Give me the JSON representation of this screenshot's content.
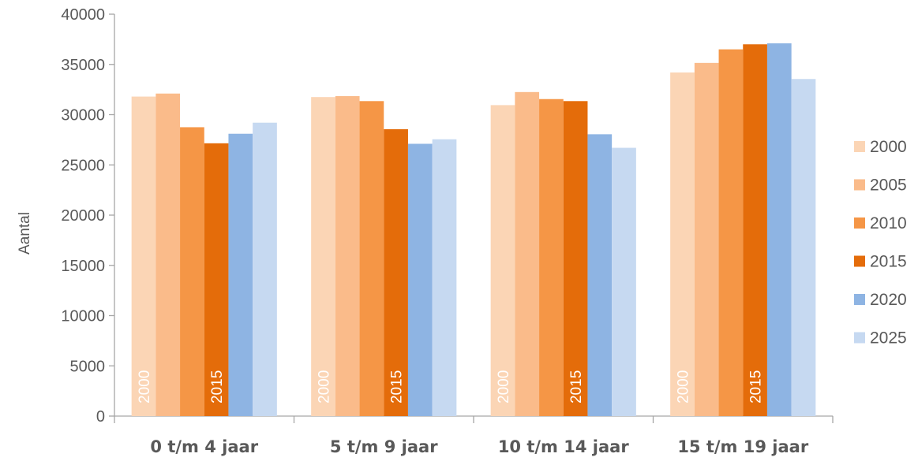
{
  "chart_data": {
    "type": "bar",
    "title": "",
    "xlabel": "",
    "ylabel": "Aantal",
    "ylim": [
      0,
      40000
    ],
    "yticks": [
      0,
      5000,
      10000,
      15000,
      20000,
      25000,
      30000,
      35000,
      40000
    ],
    "categories": [
      "0 t/m 4 jaar",
      "5 t/m 9 jaar",
      "10 t/m 14 jaar",
      "15 t/m 19 jaar"
    ],
    "series": [
      {
        "name": "2000",
        "color": "#FBD5B5",
        "values": [
          31800,
          31750,
          30950,
          34200
        ]
      },
      {
        "name": "2005",
        "color": "#FABB8A",
        "values": [
          32100,
          31850,
          32250,
          35150
        ]
      },
      {
        "name": "2010",
        "color": "#F59646",
        "values": [
          28750,
          31350,
          31550,
          36500
        ]
      },
      {
        "name": "2015",
        "color": "#E46C0A",
        "values": [
          27150,
          28550,
          31350,
          37000
        ]
      },
      {
        "name": "2020",
        "color": "#8EB4E3",
        "values": [
          28100,
          27100,
          28050,
          37100
        ]
      },
      {
        "name": "2025",
        "color": "#C6D9F1",
        "values": [
          29200,
          27550,
          26700,
          33550
        ]
      }
    ],
    "bar_labels": [
      "2000",
      "2015"
    ],
    "legend_position": "right",
    "grid": false
  }
}
